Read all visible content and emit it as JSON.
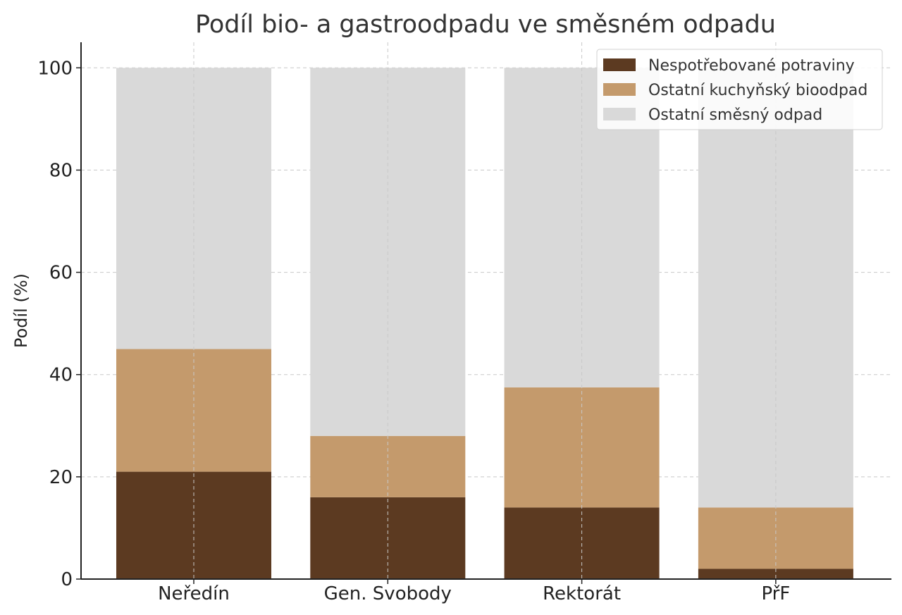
{
  "chart_data": {
    "type": "bar",
    "stacked": true,
    "title": "Podíl bio- a gastroodpadu ve směsném odpadu",
    "xlabel": "",
    "ylabel": "Podíl (%)",
    "ylim": [
      0,
      105
    ],
    "yticks": [
      0,
      20,
      40,
      60,
      80,
      100
    ],
    "grid": true,
    "legend_position": "top-right",
    "categories": [
      "Neředín",
      "Gen. Svobody",
      "Rektorát",
      "PřF"
    ],
    "series": [
      {
        "name": "Nespotřebované potraviny",
        "color": "#5c3a21",
        "values": [
          21,
          16,
          14,
          2
        ]
      },
      {
        "name": "Ostatní kuchyňský bioodpad",
        "color": "#c49a6c",
        "values": [
          24,
          12,
          23.5,
          12
        ]
      },
      {
        "name": "Ostatní směsný odpad",
        "color": "#d9d9d9",
        "values": [
          55,
          72,
          62.5,
          86
        ]
      }
    ]
  }
}
